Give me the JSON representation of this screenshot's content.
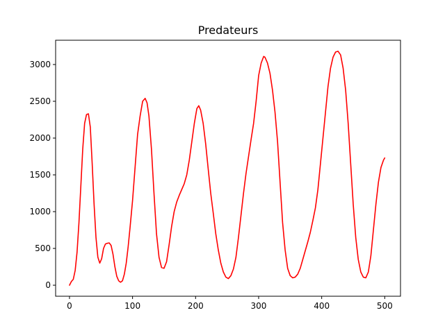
{
  "chart_data": {
    "type": "line",
    "title": "Predateurs",
    "xlabel": "",
    "ylabel": "",
    "xlim": [
      -22,
      525
    ],
    "ylim": [
      -150,
      3330
    ],
    "xticks": [
      0,
      100,
      200,
      300,
      400,
      500
    ],
    "yticks": [
      0,
      500,
      1000,
      1500,
      2000,
      2500,
      3000
    ],
    "grid": false,
    "series": [
      {
        "color": "#ff0000",
        "x": [
          0,
          3,
          6,
          9,
          12,
          15,
          18,
          21,
          24,
          27,
          30,
          33,
          36,
          39,
          42,
          45,
          48,
          51,
          54,
          57,
          60,
          63,
          66,
          69,
          72,
          75,
          78,
          81,
          84,
          87,
          90,
          93,
          96,
          100,
          104,
          108,
          112,
          116,
          120,
          123,
          126,
          130,
          134,
          138,
          142,
          146,
          150,
          154,
          158,
          162,
          166,
          170,
          174,
          178,
          182,
          186,
          190,
          194,
          198,
          202,
          205,
          208,
          212,
          216,
          220,
          224,
          228,
          232,
          236,
          240,
          244,
          248,
          252,
          256,
          260,
          264,
          268,
          272,
          276,
          280,
          284,
          288,
          292,
          296,
          300,
          304,
          308,
          310,
          314,
          318,
          322,
          326,
          330,
          334,
          338,
          342,
          346,
          350,
          354,
          358,
          362,
          366,
          370,
          374,
          378,
          382,
          386,
          390,
          394,
          398,
          402,
          406,
          410,
          414,
          418,
          422,
          426,
          430,
          434,
          438,
          442,
          446,
          450,
          454,
          458,
          462,
          466,
          470,
          474,
          478,
          482,
          486,
          490,
          494,
          498,
          500
        ],
        "values": [
          0,
          50,
          80,
          200,
          450,
          850,
          1350,
          1850,
          2200,
          2320,
          2330,
          2150,
          1650,
          1100,
          650,
          380,
          300,
          360,
          500,
          560,
          570,
          575,
          540,
          420,
          250,
          120,
          60,
          40,
          60,
          150,
          300,
          520,
          780,
          1150,
          1600,
          2050,
          2300,
          2500,
          2540,
          2480,
          2300,
          1850,
          1250,
          700,
          380,
          240,
          230,
          320,
          550,
          800,
          1000,
          1130,
          1220,
          1300,
          1380,
          1500,
          1700,
          1950,
          2200,
          2400,
          2440,
          2380,
          2200,
          1920,
          1580,
          1250,
          980,
          700,
          480,
          300,
          180,
          110,
          90,
          130,
          220,
          380,
          650,
          950,
          1250,
          1520,
          1750,
          1980,
          2200,
          2500,
          2850,
          3020,
          3110,
          3100,
          3020,
          2880,
          2650,
          2350,
          1950,
          1400,
          850,
          480,
          230,
          130,
          100,
          110,
          150,
          230,
          350,
          470,
          590,
          720,
          880,
          1050,
          1300,
          1650,
          2000,
          2350,
          2700,
          2950,
          3100,
          3170,
          3180,
          3130,
          2950,
          2650,
          2200,
          1650,
          1100,
          650,
          350,
          180,
          110,
          100,
          180,
          400,
          750,
          1100,
          1400,
          1600,
          1700,
          1730
        ]
      }
    ]
  }
}
